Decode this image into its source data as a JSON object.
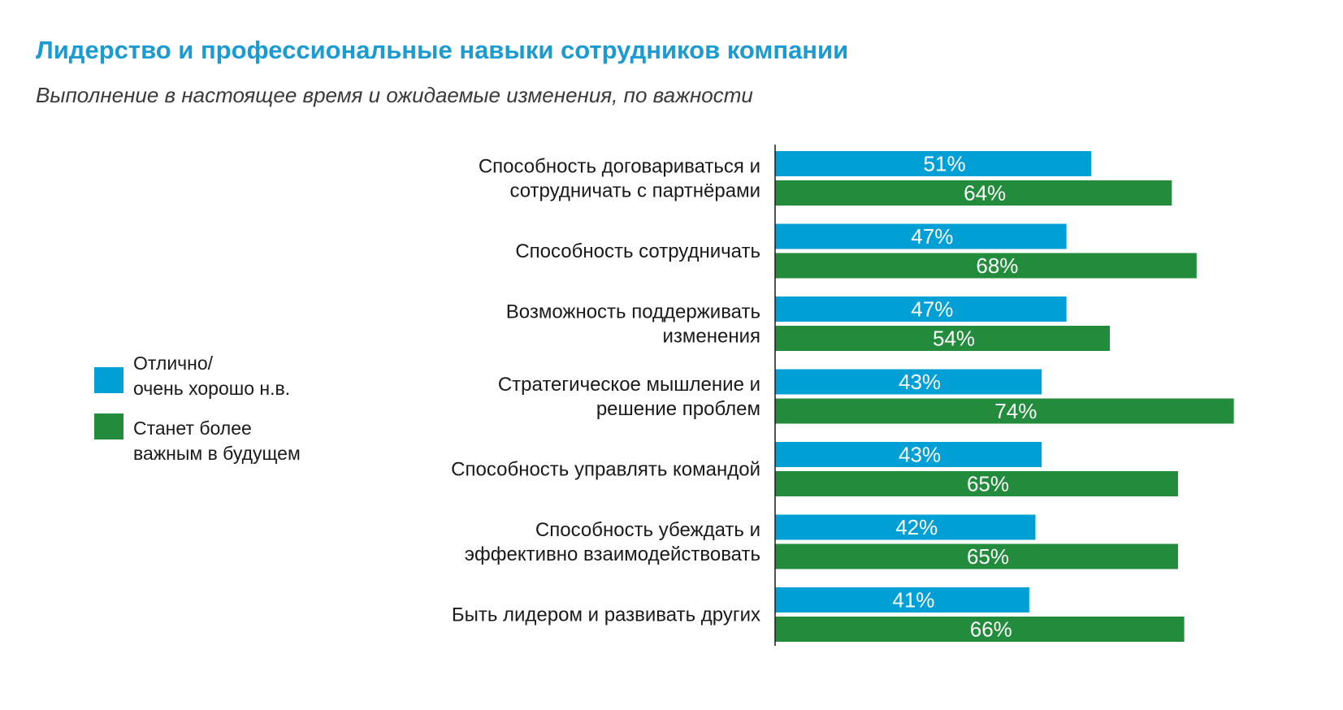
{
  "title": "Лидерство и профессиональные навыки сотрудников компании",
  "subtitle": "Выполнение в настоящее время и ожидаемые изменения, по важности",
  "legend": {
    "items": [
      {
        "label": "Отлично/\nочень хорошо н.в.",
        "color": "#00a0d6"
      },
      {
        "label": "Станет более\nважным в будущем",
        "color": "#228b3c"
      }
    ]
  },
  "chart_data": {
    "type": "bar",
    "orientation": "horizontal",
    "title": "Лидерство и профессиональные навыки сотрудников компании",
    "subtitle": "Выполнение в настоящее время и ожидаемые изменения, по важности",
    "categories": [
      [
        "Способность договариваться и",
        "сотрудничать с партнёрами"
      ],
      [
        "Способность сотрудничать"
      ],
      [
        "Возможность поддерживать",
        "изменения"
      ],
      [
        "Стратегическое мышление и",
        "решение проблем"
      ],
      [
        "Способность управлять командой"
      ],
      [
        "Способность убеждать и",
        "эффективно взаимодействовать"
      ],
      [
        "Быть лидером и развивать других"
      ]
    ],
    "series": [
      {
        "name": "Отлично/ очень хорошо н.в.",
        "color": "#00a0d6",
        "values": [
          51,
          47,
          47,
          43,
          43,
          42,
          41
        ]
      },
      {
        "name": "Станет более важным в будущем",
        "color": "#228b3c",
        "values": [
          64,
          68,
          54,
          74,
          65,
          65,
          66
        ]
      }
    ],
    "value_suffix": "%",
    "xlim": [
      0,
      74
    ],
    "grid": false,
    "legend_position": "left"
  }
}
